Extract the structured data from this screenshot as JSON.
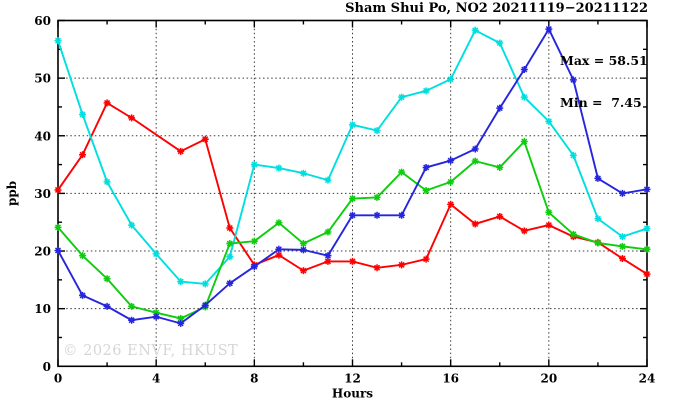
{
  "title": "Sham Shui Po, NO2 20211119−20211122",
  "annotation": {
    "max_label": "Max = 58.51",
    "min_label": "Min =  7.45"
  },
  "watermark": "© 2026 ENVF, HKUST",
  "chart_data": {
    "type": "line",
    "title": "Sham Shui Po, NO2 20211119−20211122",
    "xlabel": "Hours",
    "ylabel": "ppb",
    "xlim": [
      0,
      24
    ],
    "ylim": [
      0,
      60
    ],
    "x_major_ticks": [
      0,
      4,
      8,
      12,
      16,
      20,
      24
    ],
    "x_minor_step": 2,
    "y_major_ticks": [
      0,
      10,
      20,
      30,
      40,
      50,
      60
    ],
    "y_minor_step": 5,
    "grid": "dotted-at-major-ticks",
    "legend_position": "none",
    "marker": "asterisk",
    "max_value": 58.51,
    "min_value": 7.45,
    "x": [
      0,
      1,
      2,
      3,
      4,
      5,
      6,
      7,
      8,
      9,
      10,
      11,
      12,
      13,
      14,
      15,
      16,
      17,
      18,
      19,
      20,
      21,
      22,
      23,
      24
    ],
    "series": [
      {
        "name": "series-red",
        "color": "#ff0000",
        "values": [
          30.6,
          36.7,
          45.7,
          43.1,
          null,
          37.3,
          39.4,
          24.0,
          17.6,
          19.3,
          16.6,
          18.2,
          18.2,
          17.1,
          17.6,
          18.6,
          28.1,
          24.7,
          26.0,
          23.5,
          24.5,
          22.5,
          21.5,
          18.7,
          16.0
        ]
      },
      {
        "name": "series-cyan",
        "color": "#00dfdf",
        "values": [
          56.5,
          43.7,
          32.0,
          24.5,
          19.5,
          14.7,
          14.3,
          19.0,
          35.0,
          34.4,
          33.5,
          32.3,
          41.9,
          40.9,
          46.7,
          47.8,
          49.8,
          58.3,
          56.1,
          46.7,
          42.5,
          36.6,
          25.6,
          22.5,
          23.9
        ]
      },
      {
        "name": "series-green",
        "color": "#0ecc0e",
        "values": [
          24.1,
          19.2,
          15.2,
          10.4,
          9.3,
          8.3,
          10.3,
          21.3,
          21.7,
          24.9,
          21.3,
          23.3,
          29.1,
          29.3,
          33.7,
          30.5,
          32.0,
          35.6,
          34.5,
          39.0,
          26.7,
          22.9,
          21.4,
          20.8,
          20.3
        ]
      },
      {
        "name": "series-blue",
        "color": "#2525dd",
        "values": [
          20.1,
          12.3,
          10.4,
          8.0,
          8.6,
          7.45,
          10.6,
          14.4,
          17.3,
          20.3,
          20.2,
          19.2,
          26.2,
          26.2,
          26.2,
          34.5,
          35.7,
          37.7,
          44.8,
          51.5,
          58.51,
          49.7,
          32.6,
          30.0,
          30.7
        ]
      }
    ]
  }
}
